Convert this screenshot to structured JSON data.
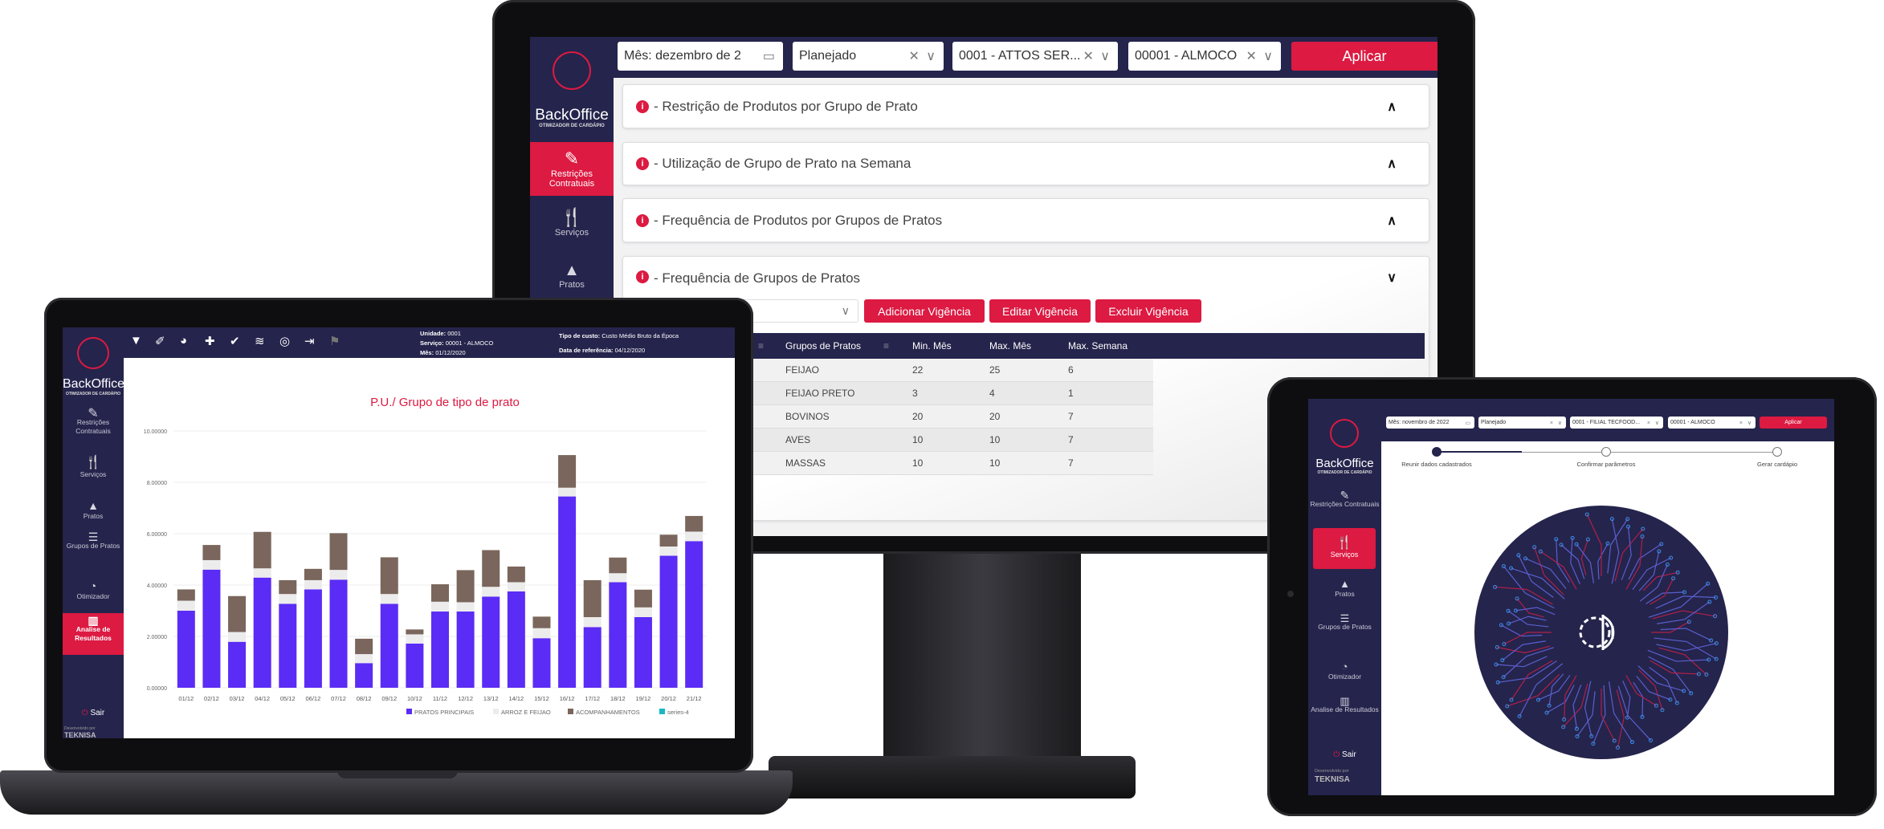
{
  "brand": {
    "name": "BackOffice",
    "subtitle": "OTIMIZADOR DE CARDÁPIO",
    "developed_by": "Desenvolvido por",
    "company": "TEKNISA",
    "logout": "Sair"
  },
  "colors": {
    "navy": "#25244c",
    "accent": "#dc1a42",
    "pratos": "#5b2cf5",
    "arroz": "#ececec",
    "acomp": "#7a665c",
    "series4": "#17b8c4"
  },
  "sidebar": {
    "items": [
      {
        "label": "Restrições Contratuais",
        "icon": "contract-edit-icon"
      },
      {
        "label": "Serviços",
        "icon": "fork-knife-icon"
      },
      {
        "label": "Pratos",
        "icon": "food-cloche-icon"
      },
      {
        "label": "Grupos de Pratos",
        "icon": "stack-icon"
      },
      {
        "label": "Otimizador",
        "icon": "gauge-icon"
      },
      {
        "label": "Analise de Resultados",
        "icon": "bar-chart-icon"
      }
    ]
  },
  "monitor": {
    "filters": {
      "month": "Mês: dezembro de 2",
      "type": "Planejado",
      "unit": "0001 - ATTOS SER...",
      "service": "00001 - ALMOCO",
      "apply": "Aplicar"
    },
    "sections": [
      {
        "title": "- Restrição de Produtos por Grupo de Prato",
        "expanded": false
      },
      {
        "title": "- Utilização de Grupo de Prato na Semana",
        "expanded": false
      },
      {
        "title": "- Frequência de Produtos por Grupos de Pratos",
        "expanded": false
      },
      {
        "title": "- Frequência de Grupos de Pratos",
        "expanded": true
      }
    ],
    "actions": {
      "add": "Adicionar Vigência",
      "edit": "Editar Vigência",
      "delete": "Excluir Vigência"
    },
    "table": {
      "headers": [
        "Grupos de Pratos",
        "Min. Mês",
        "Max. Mês",
        "Max. Semana"
      ],
      "rows": [
        [
          "FEIJAO",
          "22",
          "25",
          "6"
        ],
        [
          "FEIJAO PRETO",
          "3",
          "4",
          "1"
        ],
        [
          "BOVINOS",
          "20",
          "20",
          "7"
        ],
        [
          "AVES",
          "10",
          "10",
          "7"
        ],
        [
          "MASSAS",
          "10",
          "10",
          "7"
        ]
      ]
    }
  },
  "laptop": {
    "header": {
      "unit_label": "Unidade:",
      "unit": "0001",
      "service_label": "Serviço:",
      "service": "00001 - ALMOCO",
      "month_label": "Mês:",
      "month": "01/12/2020",
      "cost_label": "Tipo de custo:",
      "cost": "Custo Médio Bruto da Época",
      "ref_label": "Data de referência:",
      "ref": "04/12/2020"
    },
    "toolbar": [
      "filter-icon",
      "brush-icon",
      "palette-icon",
      "puzzle-icon",
      "check-icon",
      "coins-icon",
      "target-icon",
      "file-export-icon",
      "flag-icon"
    ]
  },
  "chart_data": {
    "type": "bar",
    "stacked": true,
    "title": "P.U./ Grupo de tipo de prato",
    "xlabel": "",
    "ylabel": "",
    "ylim": [
      0,
      10
    ],
    "yticks": [
      "0.00000",
      "2.00000",
      "4.00000",
      "6.00000",
      "8.00000",
      "10.00000"
    ],
    "grid": true,
    "legend": "bottom-right",
    "categories": [
      "01/12",
      "02/12",
      "03/12",
      "04/12",
      "05/12",
      "06/12",
      "07/12",
      "08/12",
      "09/12",
      "10/12",
      "11/12",
      "12/12",
      "13/12",
      "14/12",
      "15/12",
      "16/12",
      "17/12",
      "18/12",
      "19/12",
      "20/12",
      "21/12"
    ],
    "series": [
      {
        "name": "PRATOS PRINCIPAIS",
        "values": [
          3.0,
          4.6,
          1.79,
          4.29,
          3.27,
          3.83,
          4.21,
          0.96,
          3.27,
          1.72,
          2.97,
          2.97,
          3.55,
          3.75,
          1.93,
          7.45,
          2.36,
          4.11,
          2.75,
          5.14,
          5.71
        ]
      },
      {
        "name": "ARROZ E FEIJAO",
        "values": [
          0.39,
          0.37,
          0.38,
          0.36,
          0.38,
          0.36,
          0.38,
          0.35,
          0.38,
          0.36,
          0.38,
          0.36,
          0.38,
          0.36,
          0.39,
          0.34,
          0.39,
          0.35,
          0.38,
          0.36,
          0.37
        ]
      },
      {
        "name": "ACOMPANHAMENTOS",
        "values": [
          0.44,
          0.59,
          1.4,
          1.42,
          0.54,
          0.44,
          1.43,
          0.6,
          1.43,
          0.19,
          0.68,
          1.25,
          1.43,
          0.61,
          0.45,
          1.27,
          1.44,
          0.61,
          0.69,
          0.46,
          0.61
        ]
      },
      {
        "name": "series-4",
        "values": [
          0,
          0,
          0,
          0,
          0,
          0,
          0,
          0,
          0,
          0,
          0,
          0,
          0,
          0,
          0,
          0,
          0,
          0,
          0,
          0,
          0
        ]
      }
    ]
  },
  "tablet": {
    "filters": {
      "month": "Mês: novembro de 2022",
      "type": "Planejado",
      "unit": "0001 - FILIAL TECFOOD...",
      "service": "00001 - ALMOCO",
      "apply": "Aplicar"
    },
    "steps": [
      {
        "label": "Reunir dados cadastrados",
        "done": true
      },
      {
        "label": "Confirmar parâmetros",
        "done": false
      },
      {
        "label": "Gerar cardápio",
        "done": false
      }
    ]
  }
}
